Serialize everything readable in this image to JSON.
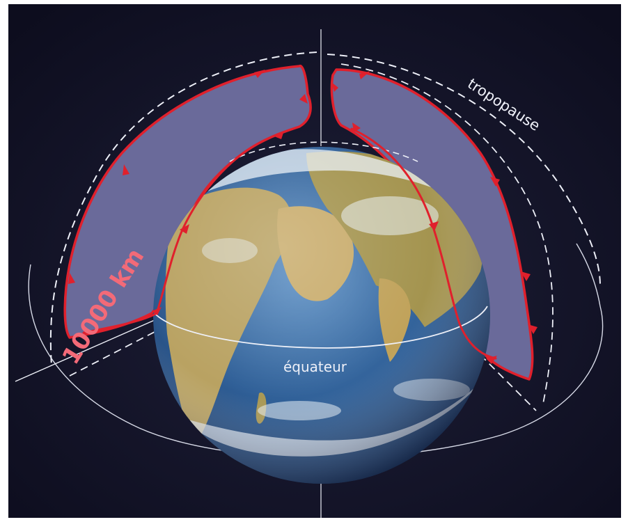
{
  "labels": {
    "tropopause": "tropopause",
    "equator": "équateur",
    "distance": "10000 km"
  },
  "colors": {
    "background": "#14142a",
    "cell_fill": "#6a6a9a",
    "circulation": "#e0202c",
    "distance_label": "#f36a78",
    "guides": "#eef0f8",
    "ocean": "#2f5f97",
    "land": "#b9a262",
    "clouds": "#e9f0f6"
  },
  "icons": {
    "cells": "hadley-cell-shape",
    "arrows": "flow-arrowhead"
  }
}
